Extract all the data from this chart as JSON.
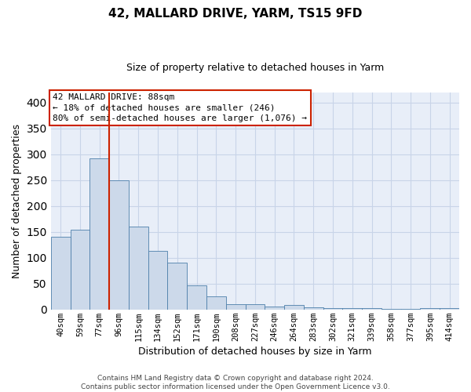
{
  "title1": "42, MALLARD DRIVE, YARM, TS15 9FD",
  "title2": "Size of property relative to detached houses in Yarm",
  "xlabel": "Distribution of detached houses by size in Yarm",
  "ylabel": "Number of detached properties",
  "categories": [
    "40sqm",
    "59sqm",
    "77sqm",
    "96sqm",
    "115sqm",
    "134sqm",
    "152sqm",
    "171sqm",
    "190sqm",
    "208sqm",
    "227sqm",
    "246sqm",
    "264sqm",
    "283sqm",
    "302sqm",
    "321sqm",
    "339sqm",
    "358sqm",
    "377sqm",
    "395sqm",
    "414sqm"
  ],
  "values": [
    140,
    155,
    292,
    250,
    160,
    113,
    90,
    46,
    25,
    10,
    10,
    6,
    9,
    4,
    2,
    2,
    2,
    1,
    1,
    3,
    2
  ],
  "bar_color": "#ccd9ea",
  "bar_edge_color": "#4d7faa",
  "grid_color": "#c8d4e8",
  "annotation_line1": "42 MALLARD DRIVE: 88sqm",
  "annotation_line2": "← 18% of detached houses are smaller (246)",
  "annotation_line3": "80% of semi-detached houses are larger (1,076) →",
  "annotation_box_facecolor": "#ffffff",
  "annotation_box_edge": "#cc2200",
  "vline_color": "#cc2200",
  "vline_pos": 2.5,
  "ylim": [
    0,
    420
  ],
  "yticks": [
    0,
    50,
    100,
    150,
    200,
    250,
    300,
    350,
    400
  ],
  "bg_color": "#e8eef8",
  "footer_text": "Contains HM Land Registry data © Crown copyright and database right 2024.\nContains public sector information licensed under the Open Government Licence v3.0.",
  "title1_fontsize": 11,
  "title2_fontsize": 9,
  "ylabel_fontsize": 9,
  "xlabel_fontsize": 9,
  "tick_fontsize": 7.5,
  "ann_fontsize": 8.0,
  "footer_fontsize": 6.5
}
